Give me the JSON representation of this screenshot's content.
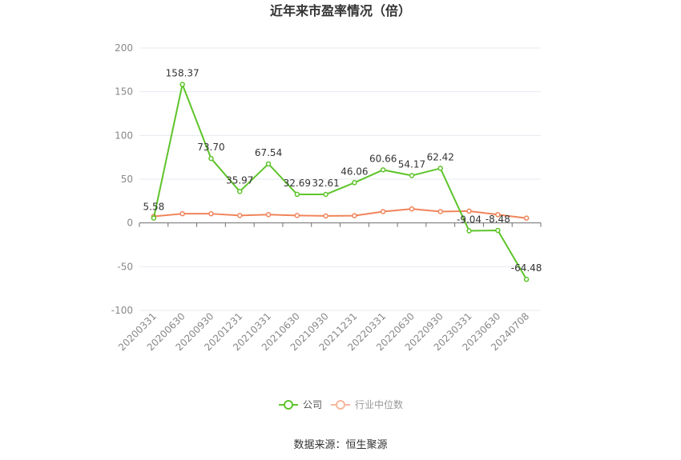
{
  "chart_data": {
    "type": "line",
    "title": "近年来市盈率情况（倍）",
    "categories": [
      "20200331",
      "20200630",
      "20200930",
      "20201231",
      "20210331",
      "20210630",
      "20210930",
      "20211231",
      "20220331",
      "20220630",
      "20220930",
      "20230331",
      "20230630",
      "20240708"
    ],
    "series": [
      {
        "name": "公司",
        "color": "#5ec42a",
        "values": [
          5.58,
          158.37,
          73.7,
          35.97,
          67.54,
          32.69,
          32.61,
          46.06,
          60.66,
          54.17,
          62.42,
          -9.04,
          -8.48,
          -64.48
        ],
        "labels": [
          "5.58",
          "158.37",
          "73.70",
          "35.97",
          "67.54",
          "32.69",
          "32.61",
          "46.06",
          "60.66",
          "54.17",
          "62.42",
          "-9.04",
          "-8.48",
          "-64.48"
        ]
      },
      {
        "name": "行业中位数",
        "color": "#f0845a",
        "values": [
          7.5,
          10.5,
          10.5,
          8.5,
          9.5,
          8.5,
          8.0,
          8.3,
          13.0,
          16.0,
          13.0,
          13.5,
          9.5,
          5.5
        ]
      }
    ],
    "ylim": [
      -100,
      200
    ],
    "yticks": [
      "200",
      "150",
      "100",
      "50",
      "0",
      "-50",
      "-100"
    ],
    "xlabel": "",
    "ylabel": "",
    "grid": true,
    "legend": "bottom-center"
  },
  "footer": {
    "source": "数据来源：恒生聚源"
  }
}
